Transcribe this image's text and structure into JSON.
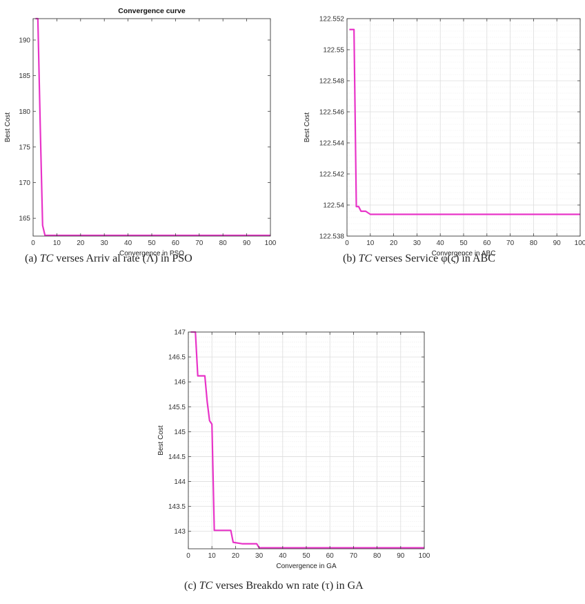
{
  "chart_data": [
    {
      "type": "line",
      "title": "Convergence curve",
      "xlabel": "Convergence in PSO",
      "ylabel": "Best Cost",
      "xlim": [
        0,
        100
      ],
      "ylim": [
        162.5,
        193
      ],
      "xticks": [
        0,
        10,
        20,
        30,
        40,
        50,
        60,
        70,
        80,
        90,
        100
      ],
      "yticks": [
        165,
        170,
        175,
        180,
        185,
        190
      ],
      "yticklabels": [
        "165",
        "170",
        "175",
        "180",
        "185",
        "190"
      ],
      "grid": false,
      "color": "#e833c8",
      "series": [
        {
          "x": [
            1,
            2,
            3,
            4,
            5,
            100
          ],
          "y": [
            193,
            193,
            178,
            164,
            162.6,
            162.6
          ]
        }
      ],
      "caption": {
        "label": "(a)",
        "pre": " verses  Arriv al  rate  (Λ)  in  PSO",
        "tc": "TC"
      }
    },
    {
      "type": "line",
      "title": "",
      "xlabel": "Convergence in ABC",
      "ylabel": "Best Cost",
      "xlim": [
        0,
        100
      ],
      "ylim": [
        122.538,
        122.552
      ],
      "xticks": [
        0,
        10,
        20,
        30,
        40,
        50,
        60,
        70,
        80,
        90,
        100
      ],
      "yticks": [
        122.538,
        122.54,
        122.542,
        122.544,
        122.546,
        122.548,
        122.55,
        122.552
      ],
      "yticklabels": [
        "122.538",
        "122.54",
        "122.542",
        "122.544",
        "122.546",
        "122.548",
        "122.55",
        "122.552"
      ],
      "grid": true,
      "color": "#e833c8",
      "series": [
        {
          "x": [
            1,
            2,
            3,
            4,
            5,
            6,
            7,
            8,
            9,
            10,
            12,
            100
          ],
          "y": [
            122.5513,
            122.5513,
            122.5513,
            122.5399,
            122.5399,
            122.5396,
            122.5396,
            122.5396,
            122.5395,
            122.5394,
            122.5394,
            122.5394
          ]
        }
      ],
      "caption": {
        "label": "(b)",
        "pre": " verses  Service  φ(ς)  in  ABC",
        "tc": "TC"
      }
    },
    {
      "type": "line",
      "title": "",
      "xlabel": "Convergence in GA",
      "ylabel": "Best Cost",
      "xlim": [
        0,
        100
      ],
      "ylim": [
        142.65,
        147
      ],
      "xticks": [
        0,
        10,
        20,
        30,
        40,
        50,
        60,
        70,
        80,
        90,
        100
      ],
      "yticks": [
        143,
        143.5,
        144,
        144.5,
        145,
        145.5,
        146,
        146.5,
        147
      ],
      "yticklabels": [
        "143",
        "143.5",
        "144",
        "144.5",
        "145",
        "145.5",
        "146",
        "146.5",
        "147"
      ],
      "grid": true,
      "color": "#e833c8",
      "series": [
        {
          "x": [
            1,
            2,
            3,
            4,
            5,
            6,
            7,
            8,
            9,
            10,
            11,
            18,
            19,
            23,
            29,
            30,
            100
          ],
          "y": [
            147,
            147,
            147,
            146.12,
            146.12,
            146.12,
            146.12,
            145.6,
            145.22,
            145.15,
            143.02,
            143.02,
            142.78,
            142.75,
            142.75,
            142.67,
            142.67
          ]
        }
      ],
      "caption": {
        "label": "(c)",
        "pre": " verses  Breakdo wn  rate  (τ)  in  GA",
        "tc": "TC"
      }
    }
  ]
}
